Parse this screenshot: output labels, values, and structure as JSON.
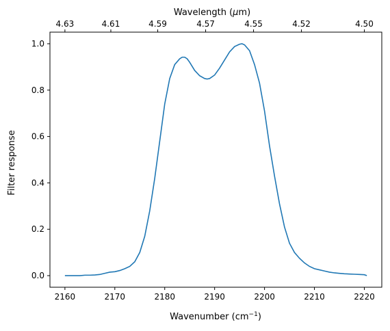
{
  "chart_data": {
    "type": "line",
    "xlabel_main": "Wavenumber (cm",
    "xlabel_sup": "−1",
    "xlabel_end": ")",
    "ylabel": "Filter response",
    "top_xlabel_main": "Wavelength (",
    "top_xlabel_mu": "μ",
    "top_xlabel_end": "m)",
    "xlim": [
      2157.0,
      2223.5
    ],
    "ylim": [
      -0.05,
      1.05
    ],
    "x_ticks": [
      2160,
      2170,
      2180,
      2190,
      2200,
      2210,
      2220
    ],
    "x_tick_labels": [
      "2160",
      "2170",
      "2180",
      "2190",
      "2200",
      "2210",
      "2220"
    ],
    "y_ticks": [
      0.0,
      0.2,
      0.4,
      0.6,
      0.8,
      1.0
    ],
    "y_tick_labels": [
      "0.0",
      "0.2",
      "0.4",
      "0.6",
      "0.8",
      "1.0"
    ],
    "top_ticks": [
      {
        "label": "4.63",
        "wavenumber": 2160.0
      },
      {
        "label": "4.61",
        "wavenumber": 2169.2
      },
      {
        "label": "4.59",
        "wavenumber": 2178.6
      },
      {
        "label": "4.57",
        "wavenumber": 2188.2
      },
      {
        "label": "4.55",
        "wavenumber": 2197.8
      },
      {
        "label": "4.52",
        "wavenumber": 2207.4
      },
      {
        "label": "4.50",
        "wavenumber": 2220.0
      }
    ],
    "grid": false,
    "line_color": "#1f77b4",
    "series": [
      {
        "x": [
          2160.0,
          2161.0,
          2162.0,
          2163.0,
          2164.0,
          2165.0,
          2166.0,
          2167.0,
          2168.0,
          2169.0,
          2170.0,
          2171.0,
          2172.0,
          2173.0,
          2174.0,
          2175.0,
          2176.0,
          2177.0,
          2178.0,
          2179.0,
          2180.0,
          2181.0,
          2182.0,
          2183.0,
          2183.5,
          2184.0,
          2184.5,
          2185.0,
          2186.0,
          2187.0,
          2188.0,
          2188.5,
          2189.0,
          2190.0,
          2191.0,
          2192.0,
          2193.0,
          2194.0,
          2195.0,
          2195.5,
          2196.0,
          2197.0,
          2198.0,
          2199.0,
          2200.0,
          2201.0,
          2202.0,
          2203.0,
          2204.0,
          2205.0,
          2206.0,
          2207.0,
          2208.0,
          2209.0,
          2210.0,
          2211.0,
          2212.0,
          2213.0,
          2214.0,
          2215.0,
          2216.0,
          2217.0,
          2218.0,
          2219.0,
          2220.0,
          2220.5
        ],
        "y": [
          0.0,
          0.0,
          0.0,
          0.0,
          0.002,
          0.002,
          0.003,
          0.005,
          0.01,
          0.015,
          0.017,
          0.022,
          0.03,
          0.04,
          0.06,
          0.1,
          0.17,
          0.28,
          0.42,
          0.58,
          0.74,
          0.85,
          0.91,
          0.935,
          0.942,
          0.942,
          0.935,
          0.92,
          0.885,
          0.862,
          0.85,
          0.848,
          0.85,
          0.865,
          0.895,
          0.93,
          0.965,
          0.988,
          0.998,
          1.0,
          0.995,
          0.97,
          0.91,
          0.83,
          0.71,
          0.56,
          0.43,
          0.31,
          0.21,
          0.14,
          0.1,
          0.075,
          0.055,
          0.04,
          0.03,
          0.025,
          0.02,
          0.015,
          0.012,
          0.01,
          0.008,
          0.007,
          0.006,
          0.005,
          0.004,
          0.0
        ]
      }
    ]
  }
}
